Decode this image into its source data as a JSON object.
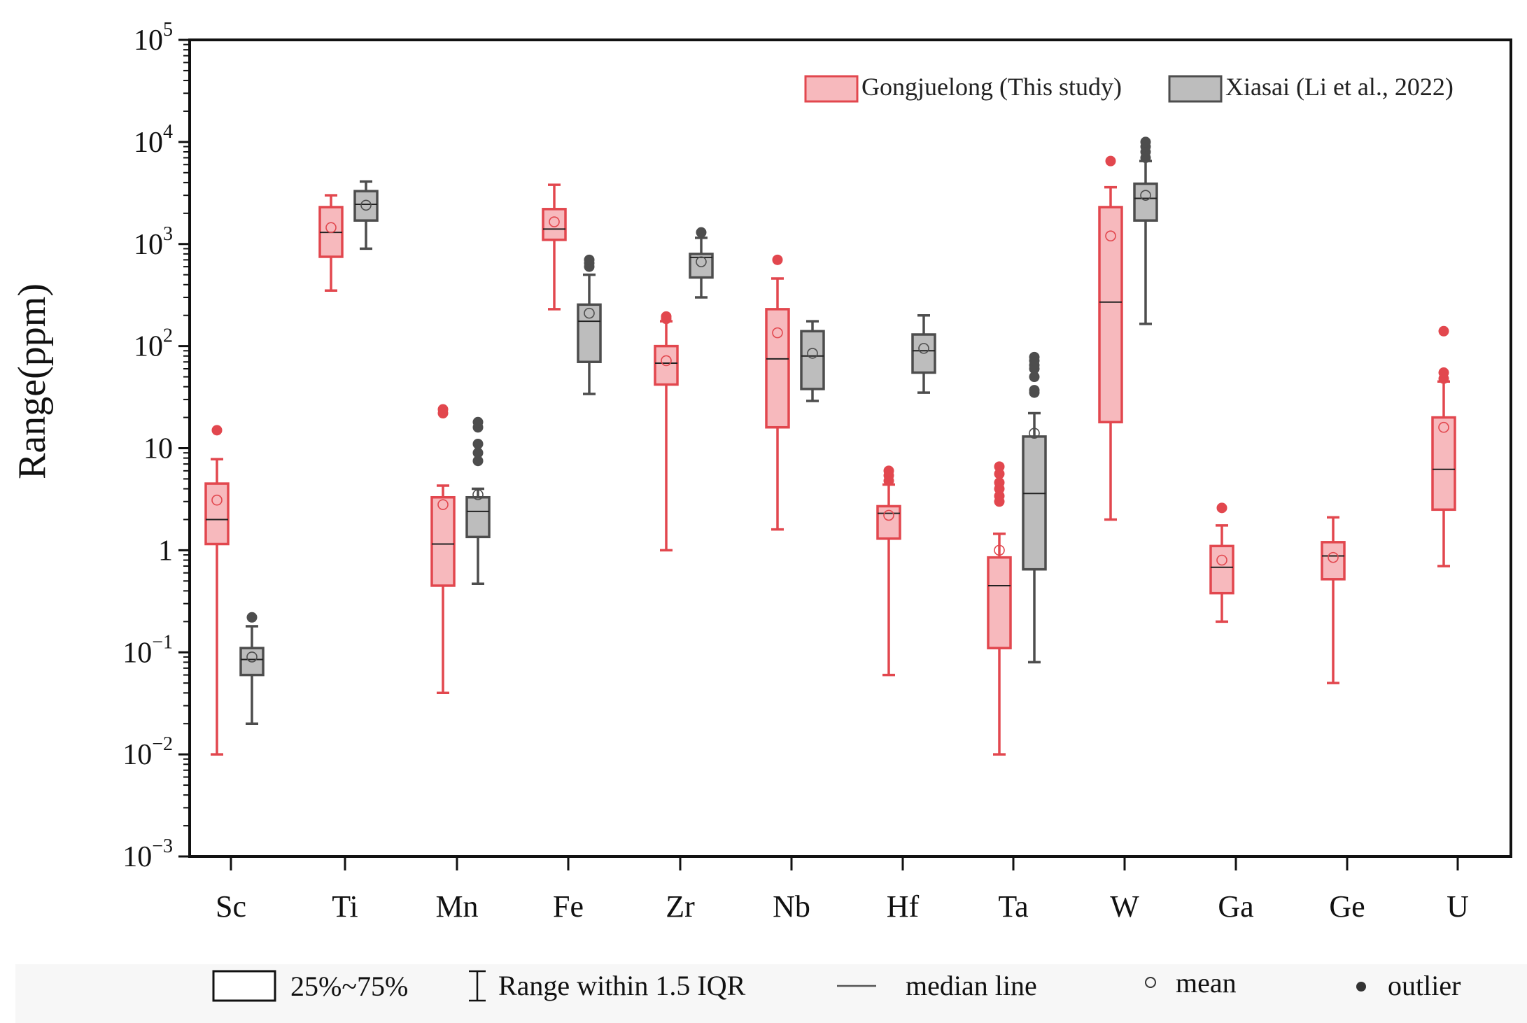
{
  "chart_data": {
    "type": "box",
    "ylabel": "Range(ppm)",
    "yscale": "log",
    "ylim": [
      0.001,
      100000
    ],
    "yticks": [
      {
        "value": 100000,
        "base": "10",
        "exp": "5"
      },
      {
        "value": 10000,
        "base": "10",
        "exp": "4"
      },
      {
        "value": 1000,
        "base": "10",
        "exp": "3"
      },
      {
        "value": 100,
        "base": "10",
        "exp": "2"
      },
      {
        "value": 10,
        "base": "10",
        "exp": ""
      },
      {
        "value": 1,
        "base": "1",
        "exp": ""
      },
      {
        "value": 0.1,
        "base": "10",
        "exp": "−1"
      },
      {
        "value": 0.01,
        "base": "10",
        "exp": "−2"
      },
      {
        "value": 0.001,
        "base": "10",
        "exp": "−3"
      }
    ],
    "categories": [
      "Sc",
      "Ti",
      "Mn",
      "Fe",
      "Zr",
      "Nb",
      "Hf",
      "Ta",
      "W",
      "Ga",
      "Ge",
      "U"
    ],
    "legend": {
      "series_position": "top-right",
      "series": [
        {
          "name": "Gongjuelong (This study)",
          "fill": "#f7b9bd",
          "stroke": "#e2474e"
        },
        {
          "name": "Xiasai (Li et al., 2022)",
          "fill": "#bdbdbd",
          "stroke": "#4d4d4d"
        }
      ],
      "key_items": [
        {
          "symbol": "box",
          "label": "25%~75%"
        },
        {
          "symbol": "whisker",
          "label": "Range within 1.5 IQR"
        },
        {
          "symbol": "median",
          "label": "median line"
        },
        {
          "symbol": "mean",
          "label": "mean"
        },
        {
          "symbol": "outlier",
          "label": "outlier"
        }
      ]
    },
    "series": [
      {
        "name": "Gongjuelong (This study)",
        "boxes": [
          {
            "category": "Sc",
            "min": 0.01,
            "q1": 1.15,
            "median": 2.0,
            "q3": 4.5,
            "max": 7.8,
            "mean": 3.1,
            "outliers": [
              15
            ]
          },
          {
            "category": "Ti",
            "min": 350,
            "q1": 750,
            "median": 1300,
            "q3": 2300,
            "max": 3000,
            "mean": 1450,
            "outliers": []
          },
          {
            "category": "Mn",
            "min": 0.04,
            "q1": 0.45,
            "median": 1.15,
            "q3": 3.3,
            "max": 4.3,
            "mean": 2.8,
            "outliers": [
              22,
              24
            ]
          },
          {
            "category": "Fe",
            "min": 230,
            "q1": 1100,
            "median": 1400,
            "q3": 2200,
            "max": 3800,
            "mean": 1650,
            "outliers": []
          },
          {
            "category": "Zr",
            "min": 1.0,
            "q1": 42,
            "median": 68,
            "q3": 100,
            "max": 175,
            "mean": 72,
            "outliers": [
              185,
              195
            ]
          },
          {
            "category": "Nb",
            "min": 1.6,
            "q1": 16,
            "median": 75,
            "q3": 230,
            "max": 460,
            "mean": 135,
            "outliers": [
              700
            ]
          },
          {
            "category": "Hf",
            "min": 0.06,
            "q1": 1.3,
            "median": 2.3,
            "q3": 2.7,
            "max": 4.4,
            "mean": 2.2,
            "outliers": [
              4.8,
              5.4,
              6.0
            ]
          },
          {
            "category": "Ta",
            "min": 0.01,
            "q1": 0.11,
            "median": 0.45,
            "q3": 0.85,
            "max": 1.45,
            "mean": 1.0,
            "outliers": [
              3.0,
              3.4,
              4.0,
              4.6,
              5.6,
              6.6
            ]
          },
          {
            "category": "W",
            "min": 2.0,
            "q1": 18,
            "median": 270,
            "q3": 2300,
            "max": 3600,
            "mean": 1200,
            "outliers": [
              6500
            ]
          },
          {
            "category": "Ga",
            "min": 0.2,
            "q1": 0.38,
            "median": 0.68,
            "q3": 1.1,
            "max": 1.75,
            "mean": 0.8,
            "outliers": [
              2.6
            ]
          },
          {
            "category": "Ge",
            "min": 0.05,
            "q1": 0.52,
            "median": 0.88,
            "q3": 1.2,
            "max": 2.1,
            "mean": 0.85,
            "outliers": []
          },
          {
            "category": "U",
            "min": 0.7,
            "q1": 2.5,
            "median": 6.2,
            "q3": 20,
            "max": 45,
            "mean": 16,
            "outliers": [
              48,
              55,
              140
            ]
          }
        ]
      },
      {
        "name": "Xiasai (Li et al., 2022)",
        "boxes": [
          {
            "category": "Sc",
            "min": 0.02,
            "q1": 0.06,
            "median": 0.085,
            "q3": 0.11,
            "max": 0.18,
            "mean": 0.09,
            "outliers": [
              0.22
            ]
          },
          {
            "category": "Ti",
            "min": 900,
            "q1": 1700,
            "median": 2450,
            "q3": 3300,
            "max": 4100,
            "mean": 2400,
            "outliers": []
          },
          {
            "category": "Mn",
            "min": 0.47,
            "q1": 1.35,
            "median": 2.4,
            "q3": 3.3,
            "max": 4.0,
            "mean": 3.5,
            "outliers": [
              7.5,
              9.0,
              11,
              16,
              18
            ]
          },
          {
            "category": "Fe",
            "min": 34,
            "q1": 70,
            "median": 175,
            "q3": 255,
            "max": 500,
            "mean": 210,
            "outliers": [
              600,
              650,
              700
            ]
          },
          {
            "category": "Zr",
            "min": 300,
            "q1": 470,
            "median": 740,
            "q3": 800,
            "max": 1150,
            "mean": 670,
            "outliers": [
              1300
            ]
          },
          {
            "category": "Nb",
            "min": 29,
            "q1": 38,
            "median": 80,
            "q3": 140,
            "max": 175,
            "mean": 85,
            "outliers": []
          },
          {
            "category": "Hf",
            "min": 35,
            "q1": 55,
            "median": 90,
            "q3": 130,
            "max": 200,
            "mean": 95,
            "outliers": []
          },
          {
            "category": "Ta",
            "min": 0.08,
            "q1": 0.65,
            "median": 3.6,
            "q3": 13,
            "max": 22,
            "mean": 14,
            "outliers": [
              35,
              37,
              50,
              60,
              65,
              72,
              78
            ]
          },
          {
            "category": "W",
            "min": 165,
            "q1": 1700,
            "median": 2800,
            "q3": 3900,
            "max": 6500,
            "mean": 3000,
            "outliers": [
              7000,
              8000,
              9000,
              10000
            ]
          }
        ]
      }
    ]
  }
}
